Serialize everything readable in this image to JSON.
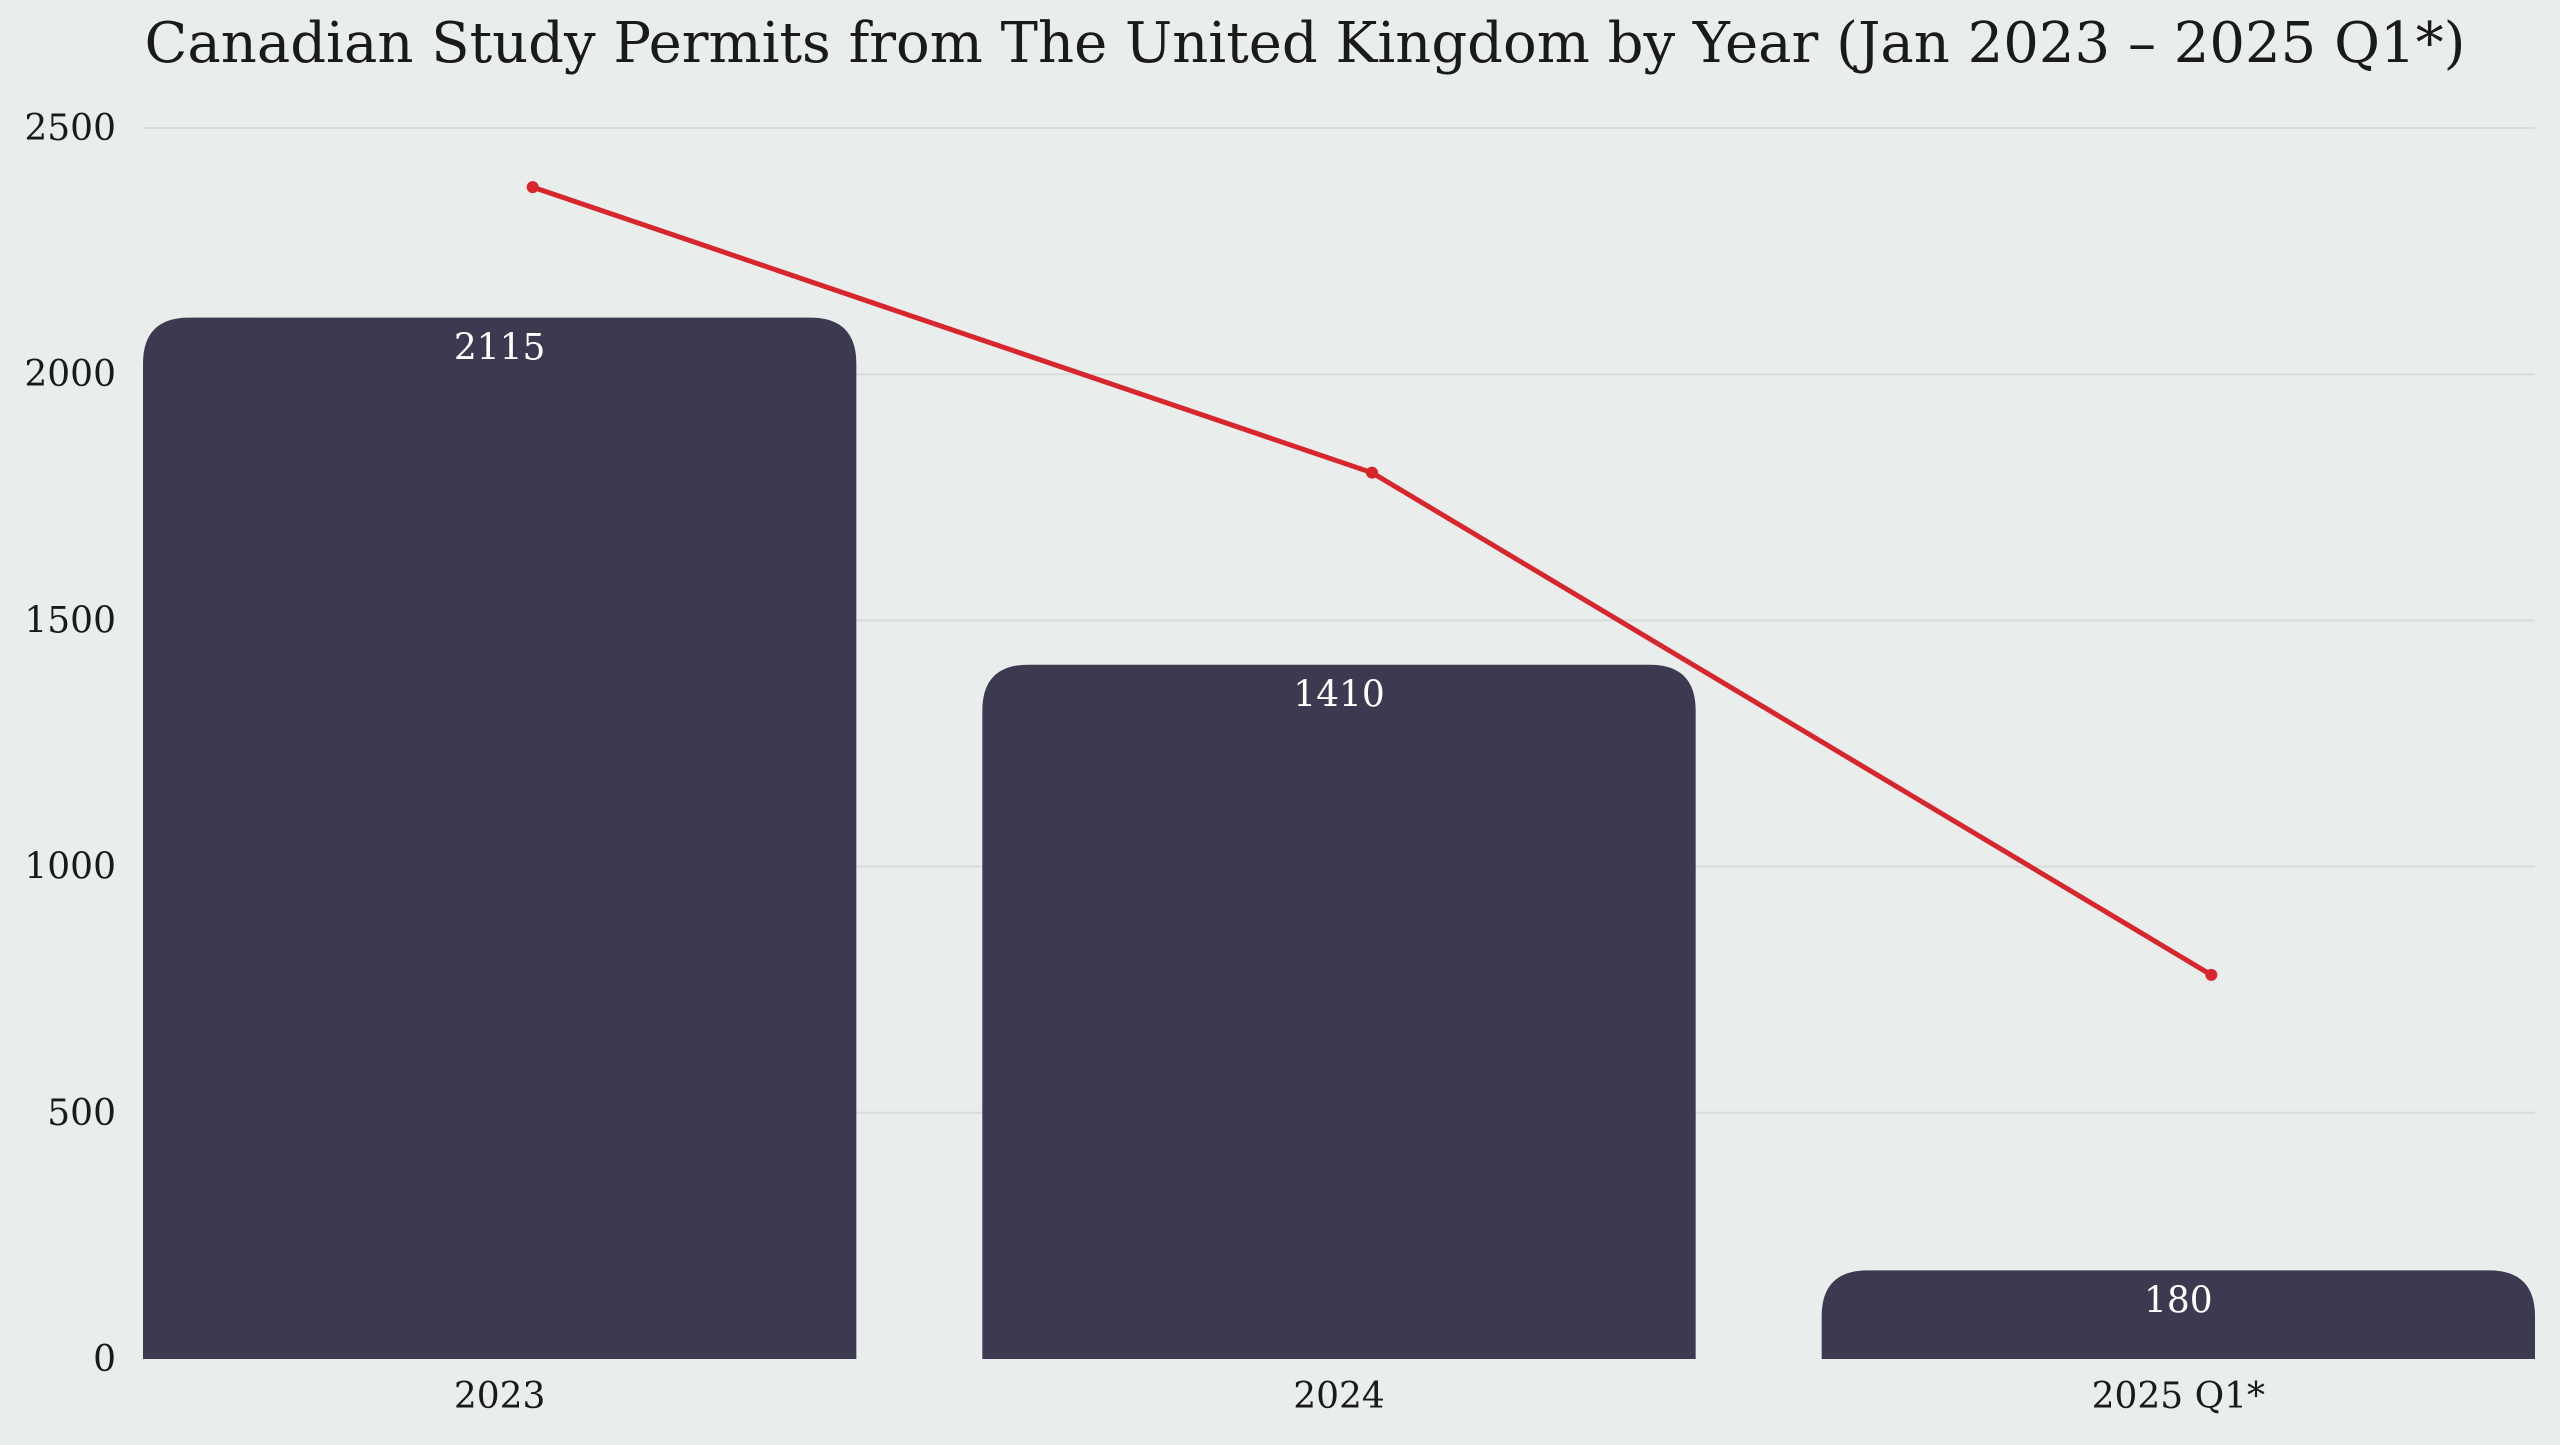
{
  "chart_data": {
    "type": "bar",
    "title": "Canadian Study Permits from The United Kingdom by Year (Jan 2023 – 2025 Q1*)",
    "categories": [
      "2023",
      "2024",
      "2025 Q1*"
    ],
    "values": [
      2115,
      1410,
      180
    ],
    "value_labels": [
      "2115",
      "1410",
      "180"
    ],
    "line_values": [
      2380,
      1800,
      780
    ],
    "yticks": [
      0,
      500,
      1000,
      1500,
      2000,
      2500
    ],
    "ylim": [
      0,
      2500
    ],
    "xlabel": "",
    "ylabel": "",
    "grid": true,
    "colors": {
      "bar": "#3d3950",
      "line": "#d7262c",
      "background": "#e9edeb",
      "grid": "#d7dbda"
    }
  }
}
